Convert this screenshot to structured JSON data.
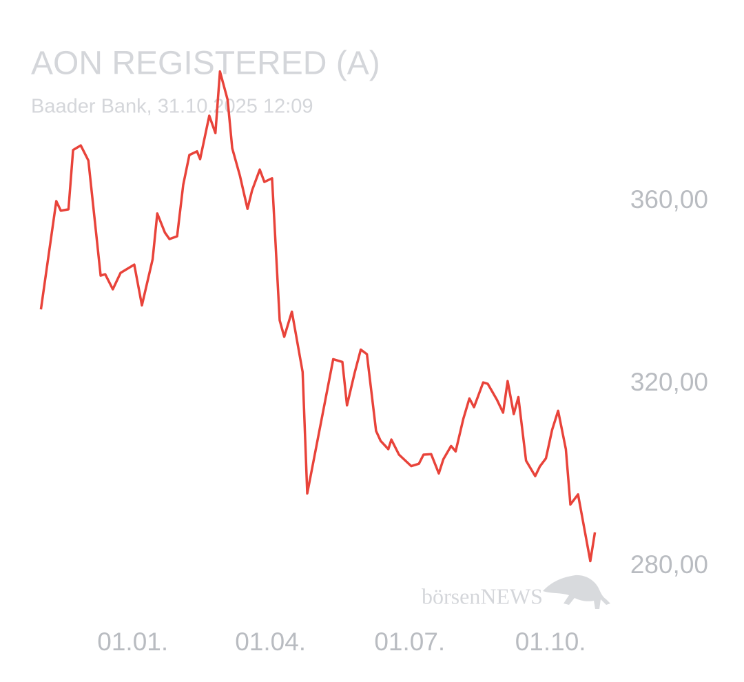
{
  "chart_data": {
    "type": "line",
    "title": "AON REGISTERED (A)",
    "subtitle": "Baader Bank, 31.10.2025 12:09",
    "watermark": "börsenNEWS",
    "x": [
      -60,
      -50,
      -47,
      -42,
      -39,
      -34,
      -29,
      -21,
      -18,
      -13,
      -8,
      1,
      6,
      13,
      16,
      21,
      24,
      29,
      33,
      37,
      42,
      44,
      50,
      54,
      57,
      62,
      65,
      70,
      75,
      78,
      83,
      86,
      91,
      96,
      99,
      104,
      111,
      114,
      131,
      137,
      140,
      145,
      149,
      153,
      159,
      162,
      167,
      169,
      174,
      182,
      187,
      190,
      195,
      200,
      203,
      208,
      211,
      216,
      220,
      223,
      229,
      232,
      238,
      242,
      245,
      249,
      252,
      257,
      263,
      266,
      270,
      274,
      278,
      283,
      286,
      291,
      299,
      302
    ],
    "series": [
      {
        "name": "AON REGISTERED (A)",
        "color": "#e8433a",
        "values": [
          336.3,
          360.0,
          357.9,
          358.2,
          371.2,
          372.2,
          368.9,
          343.7,
          344.0,
          340.7,
          344.3,
          346.1,
          337.2,
          347.3,
          357.3,
          353.1,
          351.7,
          352.3,
          363.6,
          370.1,
          370.9,
          369.2,
          378.7,
          374.9,
          388.4,
          382.2,
          371.6,
          365.6,
          358.3,
          362.4,
          366.9,
          364.2,
          365.0,
          333.9,
          330.3,
          335.8,
          322.6,
          296.0,
          325.4,
          324.8,
          315.3,
          322.4,
          327.5,
          326.5,
          309.7,
          307.5,
          305.7,
          307.8,
          304.5,
          302.0,
          302.5,
          304.5,
          304.6,
          300.4,
          303.5,
          306.4,
          305.2,
          312.3,
          316.8,
          314.9,
          320.3,
          320.0,
          316.5,
          313.7,
          320.6,
          313.4,
          317.1,
          303.2,
          299.8,
          301.9,
          303.7,
          309.9,
          314.1,
          305.7,
          293.6,
          295.8,
          281.2,
          287.5
        ]
      }
    ],
    "xlim": [
      -62,
      304
    ],
    "xticks": [
      {
        "value": 0,
        "label": "01.01."
      },
      {
        "value": 90,
        "label": "01.04."
      },
      {
        "value": 181,
        "label": "01.07."
      },
      {
        "value": 273,
        "label": "01.10."
      }
    ],
    "ylim": [
      268,
      398
    ],
    "yticks": [
      {
        "value": 280,
        "label": "280,00"
      },
      {
        "value": 320,
        "label": "320,00"
      },
      {
        "value": 360,
        "label": "360,00"
      }
    ],
    "grid": false
  }
}
